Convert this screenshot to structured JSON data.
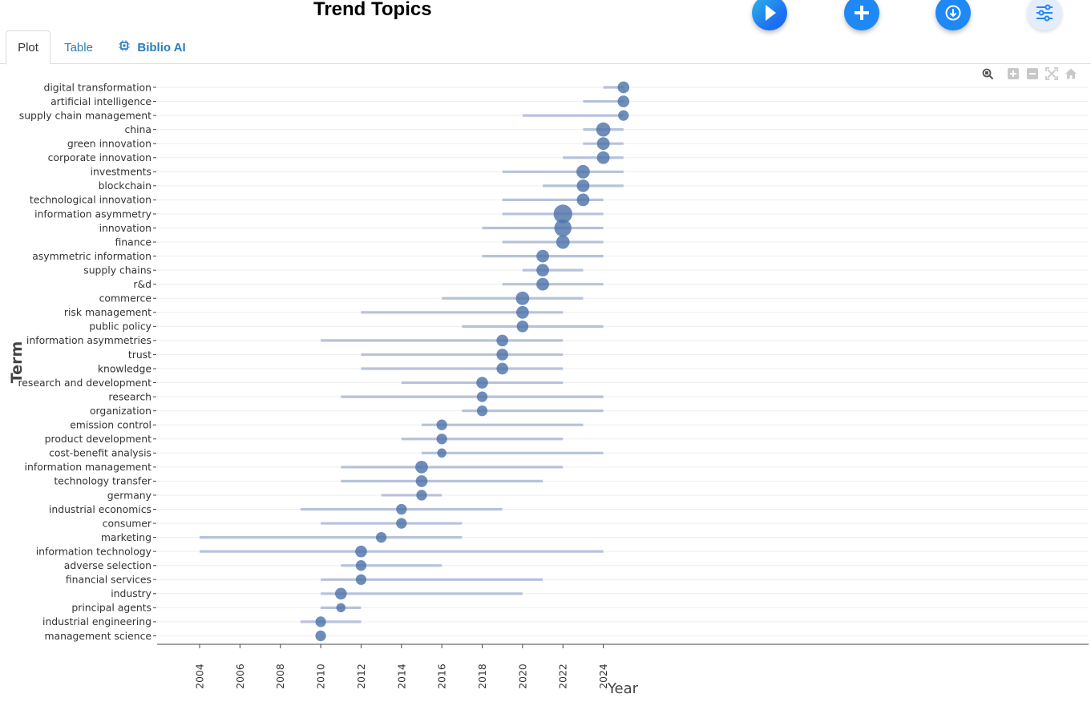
{
  "title": "Trend Topics",
  "tabs": [
    {
      "label": "Plot",
      "active": true
    },
    {
      "label": "Table",
      "active": false
    },
    {
      "label": "Biblio AI",
      "active": false,
      "icon": "chip-icon"
    }
  ],
  "toolbar_buttons": [
    {
      "icon": "play-icon",
      "color": "#1e6ff0"
    },
    {
      "icon": "plus-icon",
      "color": "#1e88f5"
    },
    {
      "icon": "download-icon",
      "color": "#1e88f5"
    },
    {
      "icon": "sliders-icon",
      "color": "#e4edfb"
    }
  ],
  "modebar": [
    "zoom-icon",
    "zoom-in-icon",
    "zoom-out-icon",
    "autoscale-icon",
    "reset-home-icon"
  ],
  "chart_data": {
    "type": "scatter",
    "xlabel": "Year",
    "ylabel": "Term",
    "xlim": [
      2003,
      2025.4
    ],
    "xticks": [
      2004,
      2006,
      2008,
      2010,
      2012,
      2014,
      2016,
      2018,
      2020,
      2022,
      2024
    ],
    "colors": {
      "bubble": "#4e74aa",
      "line": "#b7c2db",
      "grid": "#eeeeee"
    },
    "terms": [
      {
        "term": "digital transformation",
        "start": 2024,
        "end": 2025,
        "median": 2025,
        "freq": 3
      },
      {
        "term": "artificial intelligence",
        "start": 2023,
        "end": 2025,
        "median": 2025,
        "freq": 3
      },
      {
        "term": "supply chain management",
        "start": 2020,
        "end": 2025,
        "median": 2025,
        "freq": 2
      },
      {
        "term": "china",
        "start": 2023,
        "end": 2025,
        "median": 2024,
        "freq": 6
      },
      {
        "term": "green innovation",
        "start": 2023,
        "end": 2025,
        "median": 2024,
        "freq": 4
      },
      {
        "term": "corporate innovation",
        "start": 2022,
        "end": 2025,
        "median": 2024,
        "freq": 4
      },
      {
        "term": "investments",
        "start": 2019,
        "end": 2025,
        "median": 2023,
        "freq": 5
      },
      {
        "term": "blockchain",
        "start": 2021,
        "end": 2025,
        "median": 2023,
        "freq": 4
      },
      {
        "term": "technological innovation",
        "start": 2019,
        "end": 2024,
        "median": 2023,
        "freq": 4
      },
      {
        "term": "information asymmetry",
        "start": 2019,
        "end": 2024,
        "median": 2022,
        "freq": 14
      },
      {
        "term": "innovation",
        "start": 2018,
        "end": 2024,
        "median": 2022,
        "freq": 11
      },
      {
        "term": "finance",
        "start": 2019,
        "end": 2024,
        "median": 2022,
        "freq": 5
      },
      {
        "term": "asymmetric information",
        "start": 2018,
        "end": 2024,
        "median": 2021,
        "freq": 4
      },
      {
        "term": "supply chains",
        "start": 2020,
        "end": 2023,
        "median": 2021,
        "freq": 4
      },
      {
        "term": "r&d",
        "start": 2019,
        "end": 2024,
        "median": 2021,
        "freq": 4
      },
      {
        "term": "commerce",
        "start": 2016,
        "end": 2023,
        "median": 2020,
        "freq": 5
      },
      {
        "term": "risk management",
        "start": 2012,
        "end": 2022,
        "median": 2020,
        "freq": 4
      },
      {
        "term": "public policy",
        "start": 2017,
        "end": 2024,
        "median": 2020,
        "freq": 3
      },
      {
        "term": "information asymmetries",
        "start": 2010,
        "end": 2022,
        "median": 2019,
        "freq": 3
      },
      {
        "term": "trust",
        "start": 2012,
        "end": 2022,
        "median": 2019,
        "freq": 3
      },
      {
        "term": "knowledge",
        "start": 2012,
        "end": 2022,
        "median": 2019,
        "freq": 3
      },
      {
        "term": "research and development",
        "start": 2014,
        "end": 2022,
        "median": 2018,
        "freq": 3
      },
      {
        "term": "research",
        "start": 2011,
        "end": 2024,
        "median": 2018,
        "freq": 2
      },
      {
        "term": "organization",
        "start": 2017,
        "end": 2024,
        "median": 2018,
        "freq": 2
      },
      {
        "term": "emission control",
        "start": 2015,
        "end": 2023,
        "median": 2016,
        "freq": 2
      },
      {
        "term": "product development",
        "start": 2014,
        "end": 2022,
        "median": 2016,
        "freq": 2
      },
      {
        "term": "cost-benefit analysis",
        "start": 2015,
        "end": 2024,
        "median": 2016,
        "freq": 1
      },
      {
        "term": "information management",
        "start": 2011,
        "end": 2022,
        "median": 2015,
        "freq": 4
      },
      {
        "term": "technology transfer",
        "start": 2011,
        "end": 2021,
        "median": 2015,
        "freq": 3
      },
      {
        "term": "germany",
        "start": 2013,
        "end": 2016,
        "median": 2015,
        "freq": 2
      },
      {
        "term": "industrial economics",
        "start": 2009,
        "end": 2019,
        "median": 2014,
        "freq": 2
      },
      {
        "term": "consumer",
        "start": 2010,
        "end": 2017,
        "median": 2014,
        "freq": 2
      },
      {
        "term": "marketing",
        "start": 2004,
        "end": 2017,
        "median": 2013,
        "freq": 2
      },
      {
        "term": "information technology",
        "start": 2004,
        "end": 2024,
        "median": 2012,
        "freq": 3
      },
      {
        "term": "adverse selection",
        "start": 2011,
        "end": 2016,
        "median": 2012,
        "freq": 2
      },
      {
        "term": "financial services",
        "start": 2010,
        "end": 2021,
        "median": 2012,
        "freq": 2
      },
      {
        "term": "industry",
        "start": 2010,
        "end": 2020,
        "median": 2011,
        "freq": 3
      },
      {
        "term": "principal agents",
        "start": 2010,
        "end": 2012,
        "median": 2011,
        "freq": 1
      },
      {
        "term": "industrial engineering",
        "start": 2009,
        "end": 2012,
        "median": 2010,
        "freq": 2
      },
      {
        "term": "management science",
        "start": 2010,
        "end": 2010,
        "median": 2010,
        "freq": 2
      }
    ]
  }
}
